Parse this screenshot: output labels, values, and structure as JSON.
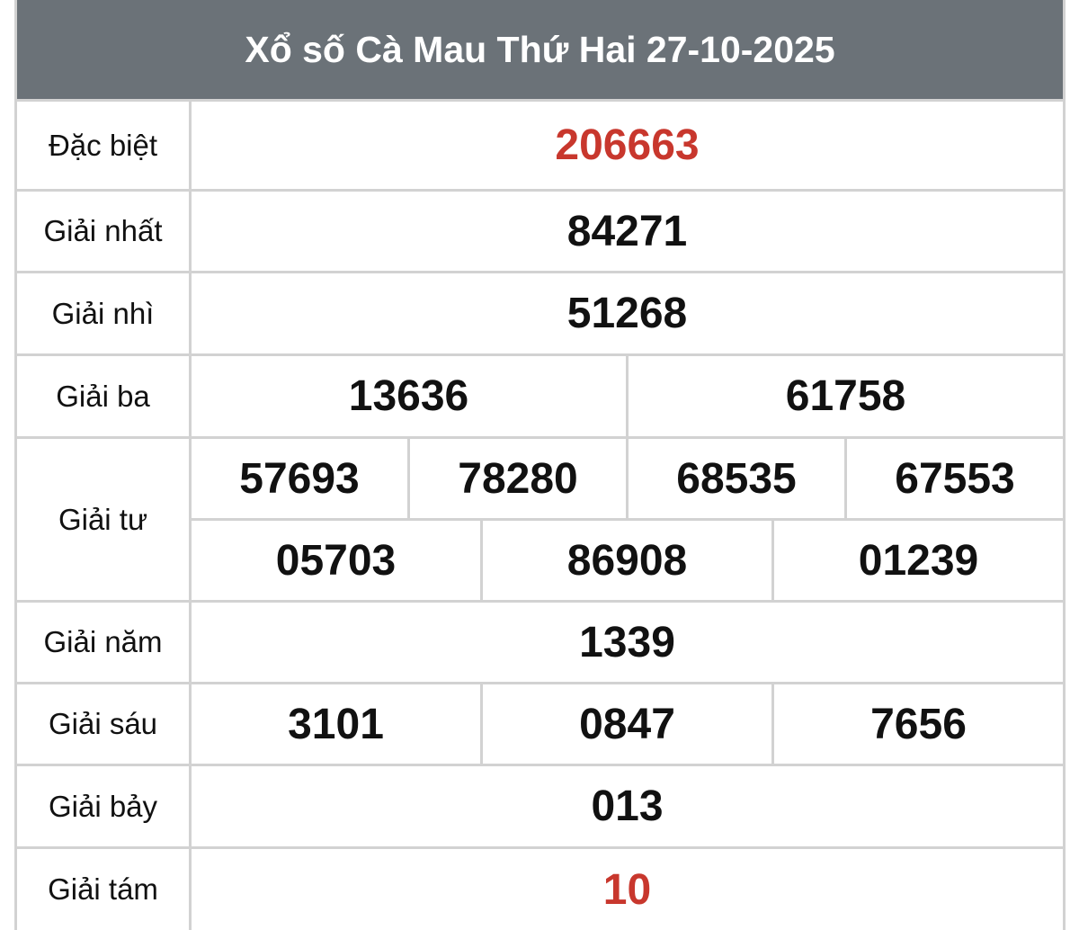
{
  "title": "Xổ số Cà Mau Thứ Hai 27-10-2025",
  "colors": {
    "header_bg": "#6b7278",
    "highlight": "#c8372d",
    "border": "#d2d2d2"
  },
  "prizes": [
    {
      "label": "Đặc biệt",
      "rows": [
        [
          "206663"
        ]
      ],
      "highlight": true
    },
    {
      "label": "Giải nhất",
      "rows": [
        [
          "84271"
        ]
      ]
    },
    {
      "label": "Giải nhì",
      "rows": [
        [
          "51268"
        ]
      ]
    },
    {
      "label": "Giải ba",
      "rows": [
        [
          "13636",
          "61758"
        ]
      ]
    },
    {
      "label": "Giải tư",
      "rows": [
        [
          "57693",
          "78280",
          "68535",
          "67553"
        ],
        [
          "05703",
          "86908",
          "01239"
        ]
      ]
    },
    {
      "label": "Giải năm",
      "rows": [
        [
          "1339"
        ]
      ]
    },
    {
      "label": "Giải sáu",
      "rows": [
        [
          "3101",
          "0847",
          "7656"
        ]
      ]
    },
    {
      "label": "Giải bảy",
      "rows": [
        [
          "013"
        ]
      ]
    },
    {
      "label": "Giải tám",
      "rows": [
        [
          "10"
        ]
      ],
      "highlight": true
    }
  ]
}
